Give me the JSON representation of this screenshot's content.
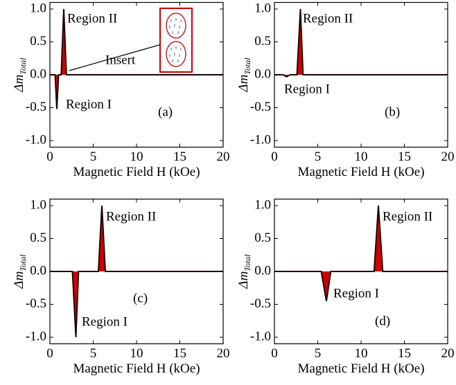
{
  "chart_data": [
    {
      "type": "area",
      "color": "#d00000",
      "x": [
        0,
        0.6,
        0.8,
        1.0,
        1.3,
        1.6,
        1.9,
        2.2,
        20
      ],
      "values": [
        0,
        0,
        -0.52,
        0,
        0,
        1.0,
        0,
        0,
        0
      ],
      "xlim": [
        0,
        20
      ],
      "ylim": [
        -1.1,
        1.1
      ],
      "xticks": [
        0,
        5,
        10,
        15,
        20
      ],
      "yticks": [
        {
          "value": -1.0,
          "label": "-1.0"
        },
        {
          "value": -0.5,
          "label": "-0.5"
        },
        {
          "value": 0,
          "label": "0.0"
        },
        {
          "value": 0.5,
          "label": "0.5"
        },
        {
          "value": 1.0,
          "label": "1.0"
        }
      ],
      "xlabel": "Magnetic Field H (kOe)",
      "ylabel": "Δm",
      "ylabel_sub": "Total",
      "annotations": [
        "Region II",
        "Region I",
        "(a)",
        "Insert"
      ]
    },
    {
      "type": "area",
      "color": "#d00000",
      "x": [
        0,
        1.0,
        1.4,
        1.8,
        2.6,
        3.0,
        3.3,
        20
      ],
      "values": [
        0,
        0,
        -0.03,
        0,
        0,
        1.0,
        0,
        0
      ],
      "xlim": [
        0,
        20
      ],
      "ylim": [
        -1.1,
        1.1
      ],
      "xticks": [
        0,
        5,
        10,
        15,
        20
      ],
      "yticks": [
        {
          "value": -1.0,
          "label": "-1.0"
        },
        {
          "value": -0.5,
          "label": "-0.5"
        },
        {
          "value": 0,
          "label": "0.0"
        },
        {
          "value": 0.5,
          "label": "0.5"
        },
        {
          "value": 1.0,
          "label": "1.0"
        }
      ],
      "xlabel": "Magnetic Field H (kOe)",
      "ylabel": "Δm",
      "ylabel_sub": "Total",
      "annotations": [
        "Region II",
        "Region I",
        "(b)"
      ]
    },
    {
      "type": "area",
      "color": "#d00000",
      "x": [
        0,
        2.6,
        3.0,
        3.3,
        5.6,
        6.0,
        6.4,
        20
      ],
      "values": [
        0,
        0,
        -1.0,
        0,
        0,
        1.0,
        0,
        0
      ],
      "xlim": [
        0,
        20
      ],
      "ylim": [
        -1.1,
        1.1
      ],
      "xticks": [
        0,
        5,
        10,
        15,
        20
      ],
      "yticks": [
        {
          "value": -1.0,
          "label": "-1.0"
        },
        {
          "value": -0.5,
          "label": "-0.5"
        },
        {
          "value": 0,
          "label": "0.0"
        },
        {
          "value": 0.5,
          "label": "0.5"
        },
        {
          "value": 1.0,
          "label": "1.0"
        }
      ],
      "xlabel": "Magnetic Field H (kOe)",
      "ylabel": "Δm",
      "ylabel_sub": "Total",
      "annotations": [
        "Region II",
        "Region I",
        "(c)"
      ]
    },
    {
      "type": "area",
      "color": "#d00000",
      "x": [
        0,
        5.4,
        6.0,
        6.5,
        11.5,
        12.0,
        12.5,
        20
      ],
      "values": [
        0,
        0,
        -0.45,
        0,
        0,
        1.0,
        0,
        0
      ],
      "xlim": [
        0,
        20
      ],
      "ylim": [
        -1.1,
        1.1
      ],
      "xticks": [
        0,
        5,
        10,
        15,
        20
      ],
      "yticks": [
        {
          "value": -1.0,
          "label": "-1.0"
        },
        {
          "value": -0.5,
          "label": "-0.5"
        },
        {
          "value": 0,
          "label": "0.0"
        },
        {
          "value": 0.5,
          "label": "0.5"
        },
        {
          "value": 1.0,
          "label": "1.0"
        }
      ],
      "xlabel": "Magnetic Field H (kOe)",
      "ylabel": "Δm",
      "ylabel_sub": "Total",
      "annotations": [
        "Region II",
        "Region I",
        "(d)"
      ]
    }
  ]
}
